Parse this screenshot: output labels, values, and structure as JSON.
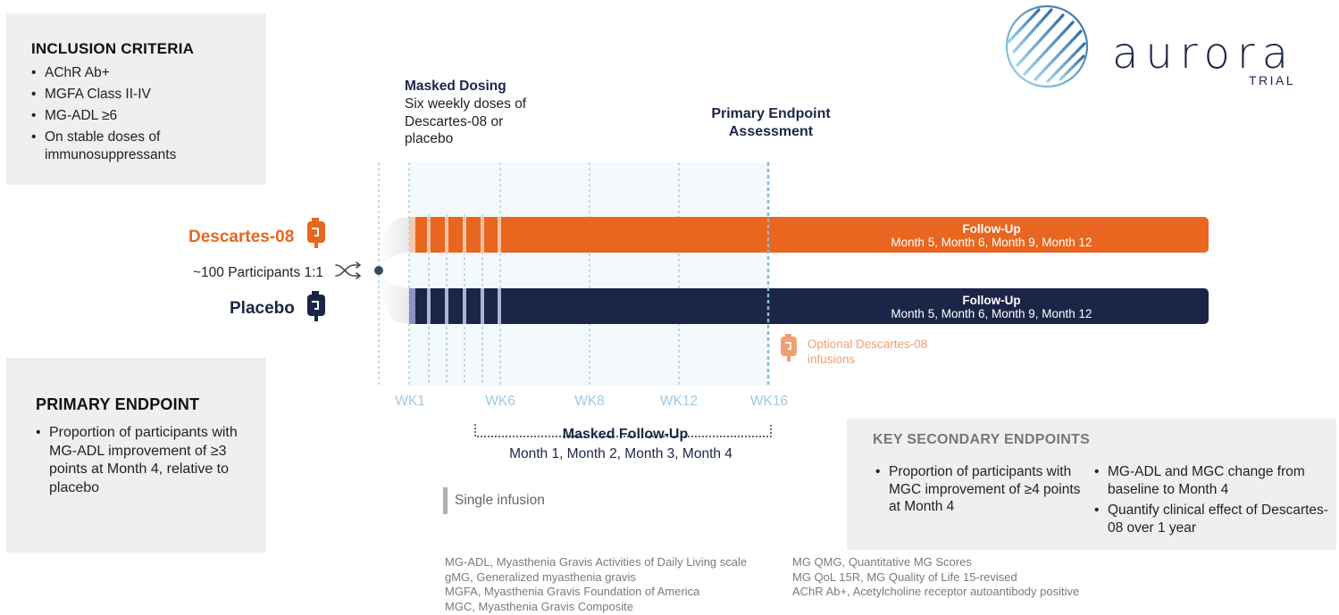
{
  "inclusion": {
    "title": "INCLUSION CRITERIA",
    "items": [
      "AChR Ab+",
      "MGFA Class II-IV",
      "MG-ADL ≥6",
      "On stable doses of immunosuppressants"
    ]
  },
  "primary_endpoint": {
    "title": "PRIMARY ENDPOINT",
    "items": [
      "Proportion of participants with MG-ADL improvement of ≥3 points at Month 4, relative to placebo"
    ]
  },
  "secondary_endpoints": {
    "title": "KEY SECONDARY ENDPOINTS",
    "col1": [
      "Proportion of participants with MGC improvement of ≥4 points at Month 4"
    ],
    "col2": [
      "MG-ADL and MGC change from baseline to Month 4",
      "Quantify clinical effect of Descartes-08 over 1 year"
    ]
  },
  "arms": {
    "descartes": "Descartes-08",
    "placebo": "Placebo",
    "participants": "~100 Participants 1:1"
  },
  "masked_dosing": {
    "title": "Masked Dosing",
    "desc": "Six weekly doses of Descartes-08 or placebo"
  },
  "primary_assessment": {
    "line1": "Primary Endpoint",
    "line2": "Assessment"
  },
  "weeks": [
    "WK1",
    "WK6",
    "WK8",
    "WK12",
    "WK16"
  ],
  "follow_up": {
    "title": "Follow-Up",
    "months": "Month 5, Month 6, Month 9, Month 12"
  },
  "optional": "Optional Descartes-08 infusions",
  "masked_follow_up": {
    "title": "Masked Follow-Up",
    "months": "Month 1, Month 2, Month 3, Month 4"
  },
  "legend": {
    "single_infusion": "Single infusion"
  },
  "abbreviations": {
    "left": [
      "MG-ADL, Myasthenia Gravis Activities of Daily Living scale",
      "gMG, Generalized myasthenia gravis",
      "MGFA, Myasthenia Gravis Foundation of America",
      "MGC, Myasthenia Gravis Composite"
    ],
    "right": [
      "MG QMG, Quantitative MG Scores",
      "MG QoL 15R, MG Quality of Life 15-revised",
      "AChR Ab+, Acetylcholine receptor autoantibody positive"
    ]
  },
  "logo": {
    "word": "aurora",
    "sub": "TRIAL"
  },
  "colors": {
    "orange": "#e8661f",
    "navy": "#1b2547",
    "light_blue": "#9fcbe0",
    "gray_box": "#efefef",
    "optional_orange": "#f0a070"
  }
}
